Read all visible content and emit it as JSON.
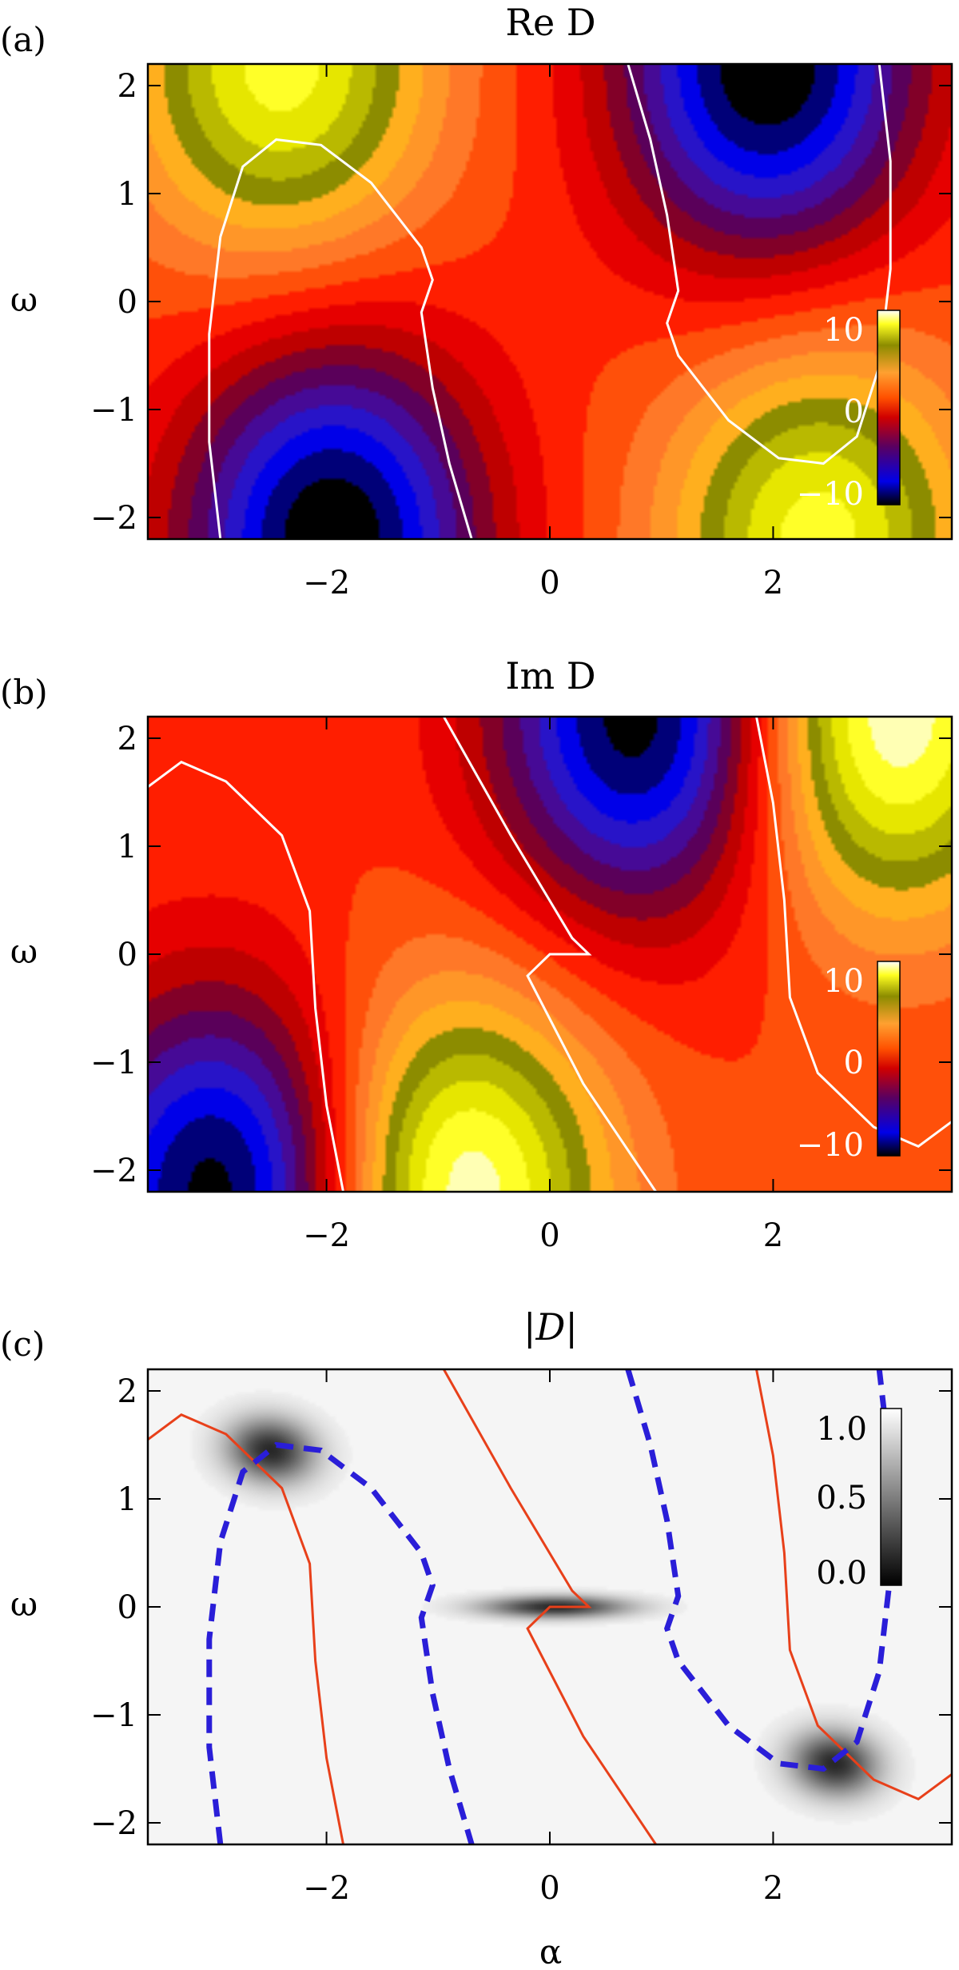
{
  "chart_data": [
    {
      "type": "heatmap",
      "panel_label": "(a)",
      "title": "Re D",
      "xlabel": "",
      "ylabel": "ω",
      "xlim": [
        -3.6,
        3.6
      ],
      "ylim": [
        -2.2,
        2.2
      ],
      "xticks": [
        -2,
        0,
        2
      ],
      "yticks": [
        2,
        1,
        0,
        -1,
        -2
      ],
      "colorscale": "red-yellow-blue (IDL rainbow-like)",
      "colorbar": {
        "ticks": [
          "10",
          "0",
          "−10"
        ],
        "range": [
          -12,
          12
        ]
      },
      "zero_contour": "white solid",
      "extrema": [
        {
          "x": -1.95,
          "y": -2.2,
          "value": -12,
          "kind": "min"
        },
        {
          "x": 1.95,
          "y": 2.2,
          "value": -12,
          "kind": "min"
        },
        {
          "x": -2.4,
          "y": 2.2,
          "value": 9,
          "kind": "max"
        },
        {
          "x": 2.4,
          "y": -2.2,
          "value": 9,
          "kind": "max"
        }
      ]
    },
    {
      "type": "heatmap",
      "panel_label": "(b)",
      "title": "Im D",
      "xlabel": "",
      "ylabel": "ω",
      "xlim": [
        -3.6,
        3.6
      ],
      "ylim": [
        -2.2,
        2.2
      ],
      "xticks": [
        -2,
        0,
        2
      ],
      "yticks": [
        2,
        1,
        0,
        -1,
        -2
      ],
      "colorscale": "red-yellow-blue (IDL rainbow-like)",
      "colorbar": {
        "ticks": [
          "10",
          "0",
          "−10"
        ],
        "range": [
          -12,
          12
        ]
      },
      "zero_contour": "white solid",
      "extrema": [
        {
          "x": -2.9,
          "y": -2.2,
          "value": -12,
          "kind": "min"
        },
        {
          "x": 0.85,
          "y": 2.2,
          "value": -12,
          "kind": "min"
        },
        {
          "x": -0.85,
          "y": -2.2,
          "value": 11,
          "kind": "max"
        },
        {
          "x": 3.0,
          "y": 2.2,
          "value": 11,
          "kind": "max"
        }
      ]
    },
    {
      "type": "heatmap",
      "panel_label": "(c)",
      "title": "|D|",
      "xlabel": "α",
      "ylabel": "ω",
      "xlim": [
        -3.6,
        3.6
      ],
      "ylim": [
        -2.2,
        2.2
      ],
      "xticks": [
        -2,
        0,
        2
      ],
      "yticks": [
        2,
        1,
        0,
        -1,
        -2
      ],
      "colorscale": "grayscale",
      "colorbar": {
        "ticks": [
          "1.0",
          "0.5",
          "0.0"
        ],
        "range": [
          0,
          1.1
        ]
      },
      "zeros": [
        {
          "x": -2.5,
          "y": 1.45
        },
        {
          "x": 0.05,
          "y": 0.0
        },
        {
          "x": 2.55,
          "y": -1.45
        }
      ],
      "series": [
        {
          "name": "",
          "style": "red solid"
        },
        {
          "name": "",
          "style": "blue dashed"
        }
      ]
    }
  ],
  "contours": {
    "re_zero": [
      [
        [
          -2.95,
          -2.2
        ],
        [
          -3.05,
          -1.3
        ],
        [
          -3.05,
          -0.3
        ],
        [
          -2.95,
          0.6
        ],
        [
          -2.75,
          1.25
        ],
        [
          -2.45,
          1.5
        ],
        [
          -2.05,
          1.45
        ],
        [
          -1.6,
          1.1
        ],
        [
          -1.15,
          0.5
        ],
        [
          -1.05,
          0.2
        ],
        [
          -1.15,
          -0.1
        ],
        [
          -1.05,
          -0.8
        ],
        [
          -0.9,
          -1.5
        ],
        [
          -0.7,
          -2.2
        ]
      ],
      [
        [
          0.7,
          2.2
        ],
        [
          0.9,
          1.5
        ],
        [
          1.05,
          0.8
        ],
        [
          1.15,
          0.1
        ],
        [
          1.05,
          -0.2
        ],
        [
          1.15,
          -0.5
        ],
        [
          1.6,
          -1.1
        ],
        [
          2.05,
          -1.45
        ],
        [
          2.45,
          -1.5
        ],
        [
          2.75,
          -1.25
        ],
        [
          2.95,
          -0.6
        ],
        [
          3.05,
          0.3
        ],
        [
          3.05,
          1.3
        ],
        [
          2.95,
          2.2
        ]
      ]
    ],
    "im_zero": [
      [
        [
          -3.6,
          1.55
        ],
        [
          -3.3,
          1.78
        ],
        [
          -2.9,
          1.6
        ],
        [
          -2.4,
          1.1
        ],
        [
          -2.15,
          0.4
        ],
        [
          -2.1,
          -0.5
        ],
        [
          -2.0,
          -1.4
        ],
        [
          -1.85,
          -2.2
        ]
      ],
      [
        [
          -0.95,
          2.2
        ],
        [
          -0.35,
          1.1
        ],
        [
          0.2,
          0.15
        ],
        [
          0.35,
          0.0
        ],
        [
          0.0,
          0.0
        ],
        [
          -0.2,
          -0.2
        ],
        [
          0.3,
          -1.2
        ],
        [
          0.95,
          -2.2
        ]
      ],
      [
        [
          1.85,
          2.2
        ],
        [
          2.0,
          1.4
        ],
        [
          2.1,
          0.5
        ],
        [
          2.15,
          -0.4
        ],
        [
          2.4,
          -1.1
        ],
        [
          2.9,
          -1.6
        ],
        [
          3.3,
          -1.78
        ],
        [
          3.6,
          -1.55
        ]
      ]
    ]
  }
}
